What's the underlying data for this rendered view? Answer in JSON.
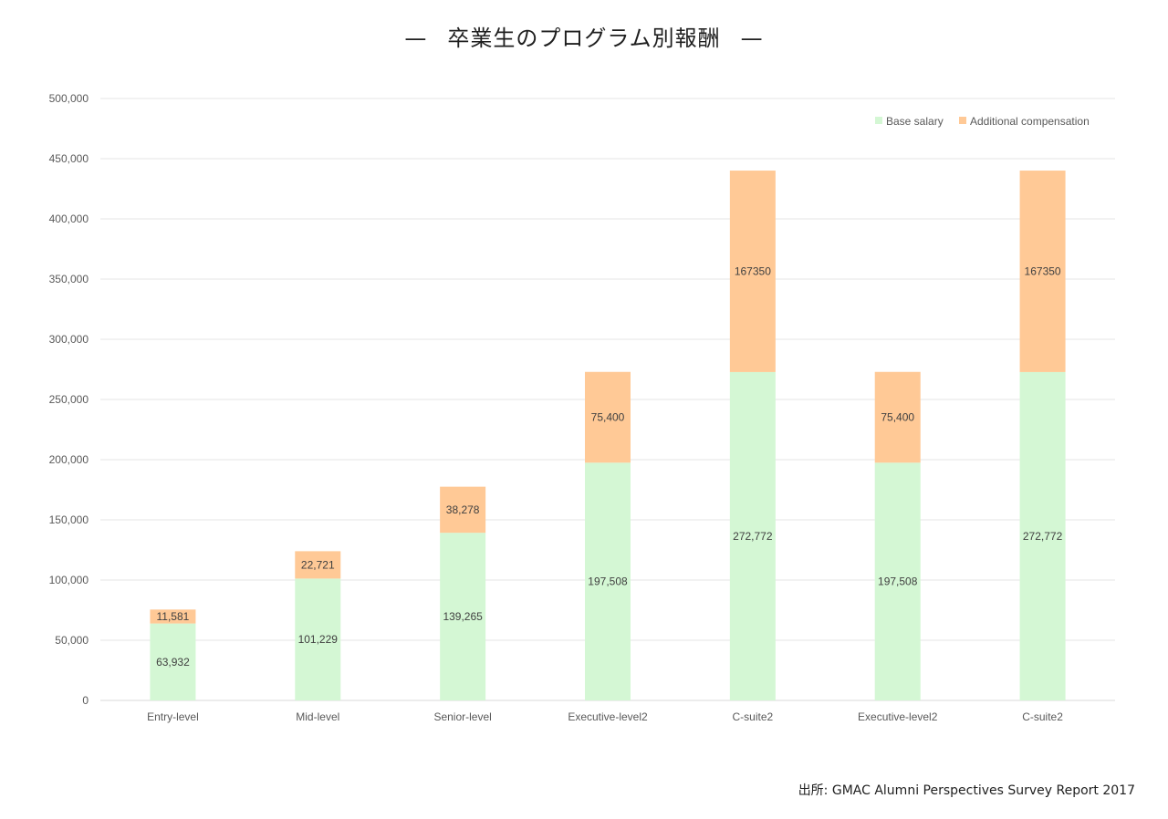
{
  "chart_data": {
    "type": "bar",
    "stacked": true,
    "title": "卒業生のプログラム別報酬",
    "title_dash": "—",
    "categories": [
      "Entry-level",
      "Mid-level",
      "Senior-level",
      "Executive-level2",
      "C-suite2",
      "Executive-level2",
      "C-suite2"
    ],
    "series": [
      {
        "name": "Base salary",
        "color": "#d4f7d4",
        "values": [
          63932,
          101229,
          139265,
          197508,
          272772,
          197508,
          272772
        ],
        "labels": [
          "63,932",
          "101,229",
          "139,265",
          "197,508",
          "272,772",
          "197,508",
          "272,772"
        ]
      },
      {
        "name": "Additional compensation",
        "color": "#ffc996",
        "values": [
          11581,
          22721,
          38278,
          75400,
          167350,
          75400,
          167350
        ],
        "labels": [
          "11,581",
          "22,721",
          "38,278",
          "75,400",
          "167350",
          "75,400",
          "167350"
        ]
      }
    ],
    "ylim": [
      0,
      500000
    ],
    "yticks": [
      {
        "value": 0,
        "label": "0"
      },
      {
        "value": 50000,
        "label": "50,000"
      },
      {
        "value": 100000,
        "label": "100,000"
      },
      {
        "value": 150000,
        "label": "150,000"
      },
      {
        "value": 200000,
        "label": "200,000"
      },
      {
        "value": 250000,
        "label": "250,000"
      },
      {
        "value": 300000,
        "label": "300,000"
      },
      {
        "value": 350000,
        "label": "350,000"
      },
      {
        "value": 400000,
        "label": "400,000"
      },
      {
        "value": 450000,
        "label": "450,000"
      },
      {
        "value": 500000,
        "label": "500,000"
      }
    ],
    "xlabel": "",
    "ylabel": "",
    "grid": true,
    "legend_position": "top-right",
    "gridline_color": "#e6e6e6"
  },
  "source": "出所: GMAC Alumni Perspectives Survey Report 2017"
}
